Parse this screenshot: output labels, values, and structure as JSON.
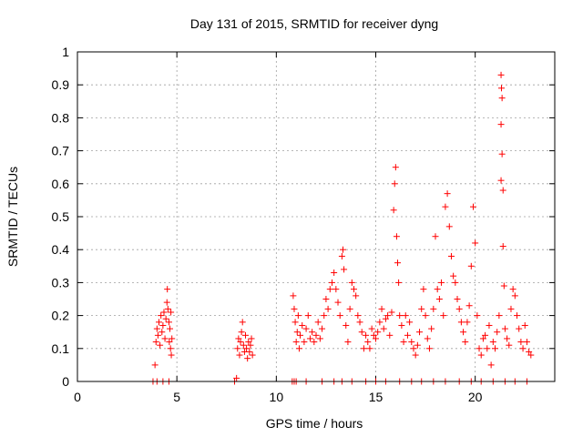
{
  "chart_data": {
    "type": "scatter",
    "title": "Day 131 of 2015, SRMTID for receiver dyng",
    "xlabel": "GPS time / hours",
    "ylabel": "SRMTID / TECUs",
    "xlim": [
      0,
      24
    ],
    "ylim": [
      0,
      1
    ],
    "xticks": [
      0,
      5,
      10,
      15,
      20
    ],
    "xtick_labels": [
      "0",
      "5",
      "10",
      "15",
      "20"
    ],
    "yticks": [
      0,
      0.1,
      0.2,
      0.3,
      0.4,
      0.5,
      0.6,
      0.7,
      0.8,
      0.9,
      1
    ],
    "ytick_labels": [
      "0",
      "0.1",
      "0.2",
      "0.3",
      "0.4",
      "0.5",
      "0.6",
      "0.7",
      "0.8",
      "0.9",
      "1"
    ],
    "grid": true,
    "marker": "+",
    "marker_color": "#ff0000",
    "series": [
      {
        "name": "SRMTID",
        "points": [
          [
            3.8,
            0
          ],
          [
            3.9,
            0.05
          ],
          [
            3.95,
            0.12
          ],
          [
            4.0,
            0.16
          ],
          [
            4.05,
            0.14
          ],
          [
            4.1,
            0.18
          ],
          [
            4.15,
            0.11
          ],
          [
            4.2,
            0.2
          ],
          [
            4.25,
            0.15
          ],
          [
            4.3,
            0.17
          ],
          [
            4.35,
            0.21
          ],
          [
            4.4,
            0.13
          ],
          [
            4.45,
            0.19
          ],
          [
            4.5,
            0.24
          ],
          [
            4.52,
            0.28
          ],
          [
            4.55,
            0.22
          ],
          [
            4.6,
            0.18
          ],
          [
            4.62,
            0.12
          ],
          [
            4.65,
            0.16
          ],
          [
            4.68,
            0.1
          ],
          [
            4.7,
            0.21
          ],
          [
            4.72,
            0.08
          ],
          [
            4.75,
            0.13
          ],
          [
            4.0,
            0
          ],
          [
            4.3,
            0
          ],
          [
            4.6,
            0
          ],
          [
            7.9,
            0
          ],
          [
            8.0,
            0.01
          ],
          [
            8.05,
            0.1
          ],
          [
            8.1,
            0.13
          ],
          [
            8.15,
            0.08
          ],
          [
            8.2,
            0.12
          ],
          [
            8.25,
            0.15
          ],
          [
            8.3,
            0.18
          ],
          [
            8.35,
            0.11
          ],
          [
            8.4,
            0.09
          ],
          [
            8.45,
            0.14
          ],
          [
            8.5,
            0.1
          ],
          [
            8.55,
            0.07
          ],
          [
            8.6,
            0.12
          ],
          [
            8.65,
            0.09
          ],
          [
            8.7,
            0.11
          ],
          [
            8.75,
            0.13
          ],
          [
            8.8,
            0.08
          ],
          [
            10.8,
            0
          ],
          [
            10.9,
            0
          ],
          [
            11.0,
            0
          ],
          [
            10.85,
            0.26
          ],
          [
            10.9,
            0.22
          ],
          [
            10.95,
            0.18
          ],
          [
            11.0,
            0.12
          ],
          [
            11.05,
            0.15
          ],
          [
            11.1,
            0.2
          ],
          [
            11.15,
            0.1
          ],
          [
            11.2,
            0.14
          ],
          [
            11.3,
            0.17
          ],
          [
            11.4,
            0.12
          ],
          [
            11.5,
            0.16
          ],
          [
            11.6,
            0.2
          ],
          [
            11.7,
            0.13
          ],
          [
            11.8,
            0.15
          ],
          [
            11.9,
            0.12
          ],
          [
            12.0,
            0.14
          ],
          [
            12.1,
            0.18
          ],
          [
            12.2,
            0.13
          ],
          [
            12.3,
            0.16
          ],
          [
            12.4,
            0.2
          ],
          [
            12.5,
            0.25
          ],
          [
            12.6,
            0.22
          ],
          [
            12.7,
            0.28
          ],
          [
            12.8,
            0.3
          ],
          [
            12.9,
            0.33
          ],
          [
            13.0,
            0.28
          ],
          [
            13.1,
            0.24
          ],
          [
            13.2,
            0.2
          ],
          [
            13.3,
            0.38
          ],
          [
            13.35,
            0.4
          ],
          [
            13.4,
            0.34
          ],
          [
            13.5,
            0.17
          ],
          [
            13.6,
            0.12
          ],
          [
            13.7,
            0.22
          ],
          [
            13.8,
            0.3
          ],
          [
            13.9,
            0.28
          ],
          [
            14.0,
            0.26
          ],
          [
            14.1,
            0.2
          ],
          [
            14.2,
            0.18
          ],
          [
            14.3,
            0.15
          ],
          [
            14.4,
            0.1
          ],
          [
            14.5,
            0.14
          ],
          [
            14.6,
            0.12
          ],
          [
            14.7,
            0.1
          ],
          [
            14.8,
            0.16
          ],
          [
            14.9,
            0.14
          ],
          [
            15.0,
            0.13
          ],
          [
            15.1,
            0.15
          ],
          [
            15.2,
            0.18
          ],
          [
            15.3,
            0.22
          ],
          [
            15.4,
            0.16
          ],
          [
            15.5,
            0.19
          ],
          [
            15.6,
            0.2
          ],
          [
            15.7,
            0.14
          ],
          [
            15.8,
            0.21
          ],
          [
            15.9,
            0.52
          ],
          [
            15.95,
            0.6
          ],
          [
            16.0,
            0.65
          ],
          [
            16.05,
            0.44
          ],
          [
            16.1,
            0.36
          ],
          [
            16.15,
            0.3
          ],
          [
            16.2,
            0.2
          ],
          [
            16.3,
            0.17
          ],
          [
            16.4,
            0.12
          ],
          [
            16.5,
            0.2
          ],
          [
            16.6,
            0.14
          ],
          [
            16.7,
            0.18
          ],
          [
            16.8,
            0.12
          ],
          [
            16.9,
            0.1
          ],
          [
            17.0,
            0.08
          ],
          [
            17.1,
            0.11
          ],
          [
            17.2,
            0.15
          ],
          [
            17.3,
            0.22
          ],
          [
            17.4,
            0.28
          ],
          [
            17.5,
            0.2
          ],
          [
            17.6,
            0.13
          ],
          [
            17.7,
            0.1
          ],
          [
            17.8,
            0.16
          ],
          [
            17.9,
            0.22
          ],
          [
            18.0,
            0.44
          ],
          [
            18.1,
            0.28
          ],
          [
            18.2,
            0.25
          ],
          [
            18.3,
            0.3
          ],
          [
            18.4,
            0.2
          ],
          [
            18.5,
            0.53
          ],
          [
            18.6,
            0.57
          ],
          [
            18.7,
            0.47
          ],
          [
            18.8,
            0.38
          ],
          [
            18.9,
            0.32
          ],
          [
            19.0,
            0.3
          ],
          [
            19.1,
            0.25
          ],
          [
            19.2,
            0.22
          ],
          [
            19.3,
            0.18
          ],
          [
            19.4,
            0.15
          ],
          [
            19.5,
            0.12
          ],
          [
            19.6,
            0.18
          ],
          [
            19.7,
            0.23
          ],
          [
            19.8,
            0.35
          ],
          [
            19.9,
            0.53
          ],
          [
            20.0,
            0.42
          ],
          [
            20.1,
            0.2
          ],
          [
            20.2,
            0.1
          ],
          [
            20.3,
            0.08
          ],
          [
            20.4,
            0.13
          ],
          [
            20.5,
            0.14
          ],
          [
            20.6,
            0.1
          ],
          [
            20.7,
            0.17
          ],
          [
            20.8,
            0.05
          ],
          [
            20.9,
            0.12
          ],
          [
            21.0,
            0.1
          ],
          [
            21.1,
            0.15
          ],
          [
            21.2,
            0.2
          ],
          [
            21.3,
            0.93
          ],
          [
            21.32,
            0.89
          ],
          [
            21.35,
            0.86
          ],
          [
            21.3,
            0.78
          ],
          [
            21.35,
            0.69
          ],
          [
            21.3,
            0.61
          ],
          [
            21.4,
            0.58
          ],
          [
            21.4,
            0.41
          ],
          [
            21.45,
            0.29
          ],
          [
            21.5,
            0.16
          ],
          [
            21.6,
            0.13
          ],
          [
            21.7,
            0.11
          ],
          [
            21.8,
            0.22
          ],
          [
            21.9,
            0.28
          ],
          [
            22.0,
            0.26
          ],
          [
            22.1,
            0.2
          ],
          [
            22.2,
            0.16
          ],
          [
            22.3,
            0.12
          ],
          [
            22.4,
            0.1
          ],
          [
            22.5,
            0.17
          ],
          [
            22.6,
            0.12
          ],
          [
            22.7,
            0.09
          ],
          [
            22.8,
            0.08
          ],
          [
            11.5,
            0
          ],
          [
            12.3,
            0
          ],
          [
            12.9,
            0
          ],
          [
            13.3,
            0
          ],
          [
            13.8,
            0
          ],
          [
            14.5,
            0
          ],
          [
            15.0,
            0
          ],
          [
            15.5,
            0
          ],
          [
            16.2,
            0
          ],
          [
            16.8,
            0
          ],
          [
            17.3,
            0
          ],
          [
            17.9,
            0
          ],
          [
            18.5,
            0
          ],
          [
            19.2,
            0
          ],
          [
            19.8,
            0
          ],
          [
            20.3,
            0
          ],
          [
            20.9,
            0
          ],
          [
            21.5,
            0
          ],
          [
            22.0,
            0
          ],
          [
            22.6,
            0
          ]
        ]
      }
    ]
  }
}
